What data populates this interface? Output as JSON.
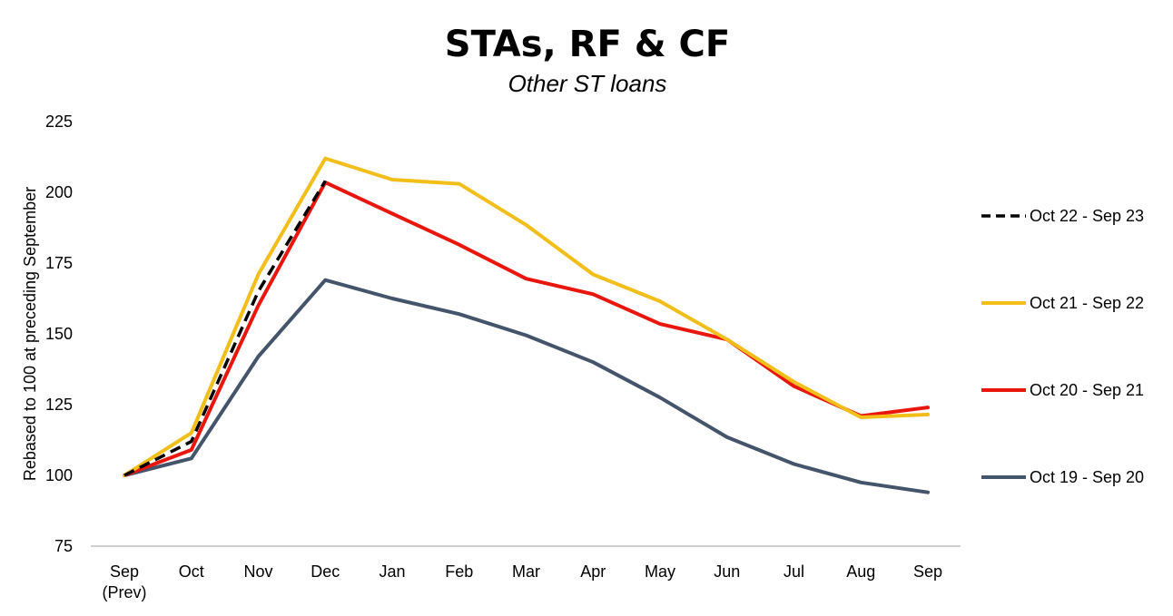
{
  "chart_data": {
    "type": "line",
    "title": "STAs, RF & CF",
    "subtitle": "Other ST loans",
    "xlabel": "",
    "ylabel": "Rebased to 100 at   preceding September",
    "categories": [
      "Sep\n(Prev)",
      "Oct",
      "Nov",
      "Dec",
      "Jan",
      "Feb",
      "Mar",
      "Apr",
      "May",
      "Jun",
      "Jul",
      "Aug",
      "Sep"
    ],
    "ylim": [
      75,
      225
    ],
    "yticks": [
      75,
      100,
      125,
      150,
      175,
      200,
      225
    ],
    "grid": false,
    "legend_position": "right",
    "series": [
      {
        "name": "Oct 22 - Sep 23",
        "color": "#000000",
        "dashed": true,
        "values": [
          100,
          112,
          165,
          204,
          null,
          null,
          null,
          null,
          null,
          null,
          null,
          null,
          null
        ]
      },
      {
        "name": "Oct 21 - Sep 22",
        "color": "#F2BE1A",
        "dashed": false,
        "values": [
          100,
          115,
          171,
          212,
          204.5,
          203,
          188.5,
          171,
          161.5,
          148,
          133,
          120.5,
          121.5
        ]
      },
      {
        "name": "Oct 20 - Sep 21",
        "color": "#E8160C",
        "dashed": false,
        "values": [
          100,
          109,
          160,
          203.5,
          192.5,
          181.5,
          169.5,
          164,
          153.5,
          148,
          131.5,
          121,
          124
        ]
      },
      {
        "name": "Oct 19 - Sep 20",
        "color": "#44546A",
        "dashed": false,
        "values": [
          100,
          106,
          142,
          169,
          162.5,
          157,
          149.5,
          140,
          127.5,
          113.5,
          104,
          97.5,
          94
        ]
      }
    ]
  }
}
